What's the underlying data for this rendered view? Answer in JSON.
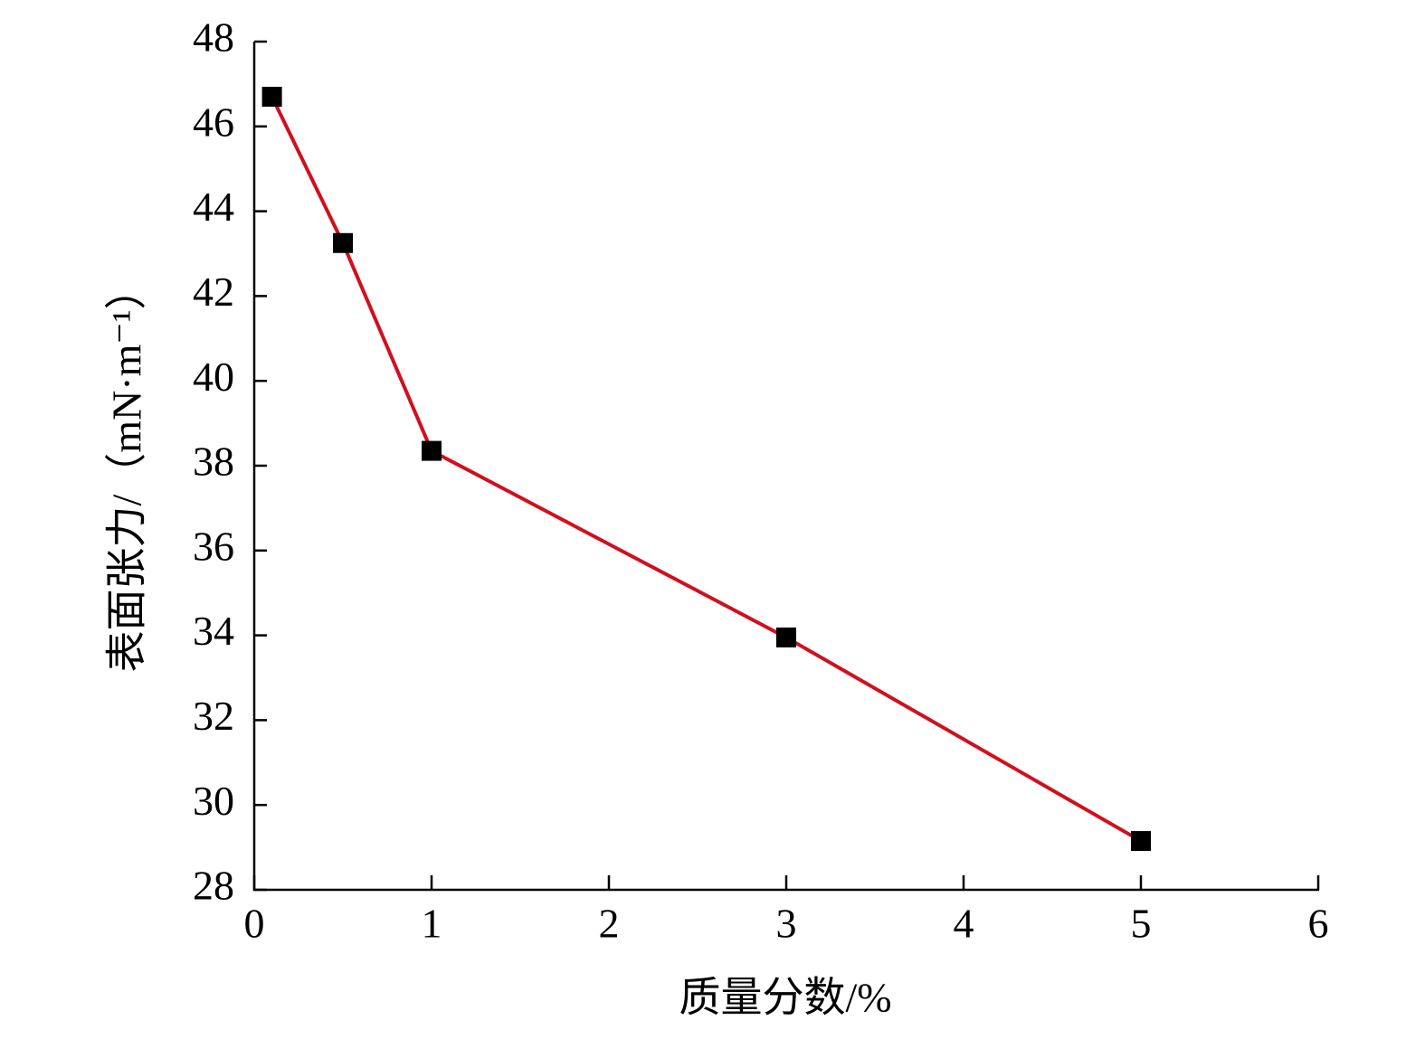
{
  "chart_data": {
    "type": "line",
    "x_label": "质量分数/%",
    "y_label": "表面张力/（mN·m⁻¹）",
    "x": [
      0.1,
      0.5,
      1,
      3,
      5
    ],
    "series": [
      {
        "name": "表面张力",
        "color": "#d0101e",
        "marker_color": "#000000",
        "values": [
          46.7,
          43.25,
          38.35,
          33.95,
          29.15
        ]
      }
    ],
    "xlim": [
      0,
      6
    ],
    "xticks": [
      0,
      1,
      2,
      3,
      4,
      5,
      6
    ],
    "ylim": [
      28,
      48
    ],
    "yticks": [
      28,
      30,
      32,
      34,
      36,
      38,
      40,
      42,
      44,
      46,
      48
    ],
    "grid": false,
    "legend": false
  }
}
